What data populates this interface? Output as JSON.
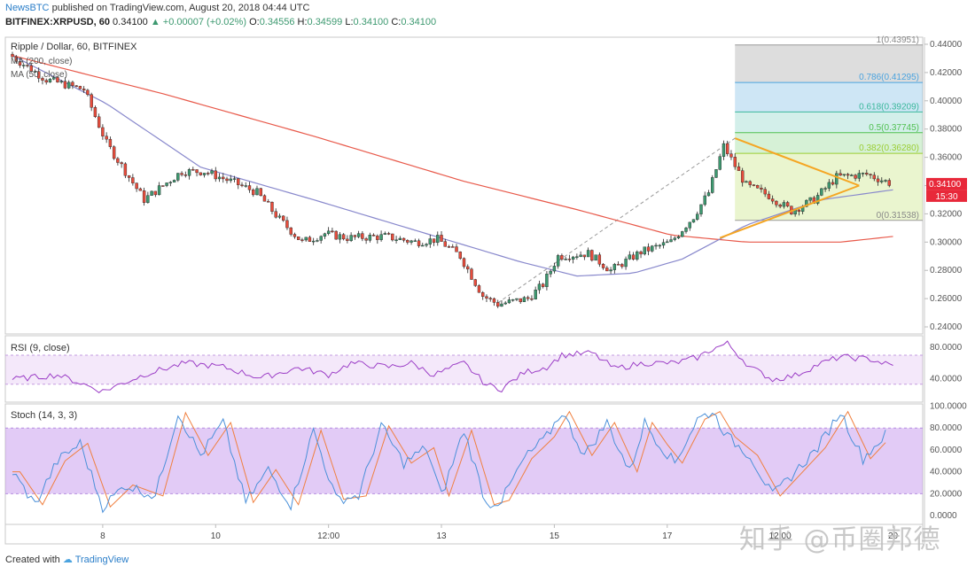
{
  "header": {
    "publisher": "NewsBTC",
    "published_text": "published on TradingView.com, August 20, 2018 04:44 UTC",
    "symbol": "BITFINEX:XRPUSD, 60",
    "last": "0.34100",
    "change": "▲ +0.00007 (+0.02%)",
    "o_label": "O:",
    "o": "0.34556",
    "h_label": "H:",
    "h": "0.34599",
    "l_label": "L:",
    "l": "0.34100",
    "c_label": "C:",
    "c": "0.34100"
  },
  "footer": {
    "created_with": "Created with",
    "brand": "TradingView"
  },
  "watermark": "知乎 @币圈邦德",
  "colors": {
    "up": "#3d9970",
    "down": "#e74c3c",
    "ma200": "#e8594a",
    "ma50": "#8888cc",
    "triangle": "#f5a623",
    "rsi": "#9b3dc6",
    "stoch_k": "#4a90d9",
    "stoch_d": "#f08040"
  },
  "chart_data": [
    {
      "type": "candlestick",
      "title": "Ripple / Dollar, 60, BITFINEX",
      "indicators": [
        "MA (200, close)",
        "MA (50, close)"
      ],
      "x_ticks": [
        "8",
        "10",
        "12:00",
        "13",
        "15",
        "17",
        "12:00",
        "20"
      ],
      "x_tick_bars": [
        24,
        54,
        84,
        114,
        144,
        174,
        204,
        234
      ],
      "n_bars": 240,
      "ylim": [
        0.235,
        0.445
      ],
      "y_ticks": [
        "0.44000",
        "0.42000",
        "0.40000",
        "0.38000",
        "0.36000",
        "0.34000",
        "0.32000",
        "0.30000",
        "0.28000",
        "0.26000",
        "0.24000"
      ],
      "last_price_label": "0.34100",
      "countdown_label": "15:30",
      "price_path": [
        [
          0,
          0.433
        ],
        [
          10,
          0.415
        ],
        [
          20,
          0.408
        ],
        [
          26,
          0.37
        ],
        [
          36,
          0.33
        ],
        [
          46,
          0.35
        ],
        [
          52,
          0.35
        ],
        [
          60,
          0.342
        ],
        [
          66,
          0.335
        ],
        [
          72,
          0.316
        ],
        [
          78,
          0.3
        ],
        [
          84,
          0.306
        ],
        [
          90,
          0.303
        ],
        [
          100,
          0.304
        ],
        [
          108,
          0.3
        ],
        [
          114,
          0.302
        ],
        [
          120,
          0.29
        ],
        [
          126,
          0.262
        ],
        [
          130,
          0.256
        ],
        [
          138,
          0.26
        ],
        [
          142,
          0.27
        ],
        [
          146,
          0.29
        ],
        [
          154,
          0.292
        ],
        [
          160,
          0.28
        ],
        [
          168,
          0.293
        ],
        [
          176,
          0.3
        ],
        [
          182,
          0.318
        ],
        [
          186,
          0.335
        ],
        [
          190,
          0.368
        ],
        [
          196,
          0.34
        ],
        [
          202,
          0.333
        ],
        [
          208,
          0.322
        ],
        [
          214,
          0.33
        ],
        [
          220,
          0.346
        ],
        [
          228,
          0.348
        ],
        [
          234,
          0.342
        ]
      ],
      "ma200": [
        [
          0,
          0.432
        ],
        [
          40,
          0.405
        ],
        [
          80,
          0.375
        ],
        [
          120,
          0.343
        ],
        [
          150,
          0.323
        ],
        [
          175,
          0.305
        ],
        [
          195,
          0.3
        ],
        [
          220,
          0.3
        ],
        [
          234,
          0.304
        ]
      ],
      "ma50": [
        [
          0,
          0.432
        ],
        [
          25,
          0.398
        ],
        [
          50,
          0.353
        ],
        [
          80,
          0.33
        ],
        [
          110,
          0.306
        ],
        [
          135,
          0.286
        ],
        [
          150,
          0.276
        ],
        [
          165,
          0.278
        ],
        [
          178,
          0.288
        ],
        [
          195,
          0.312
        ],
        [
          215,
          0.33
        ],
        [
          234,
          0.337
        ]
      ],
      "fibonacci": {
        "levels": [
          {
            "ratio": 1,
            "price": 0.43951,
            "label": "1(0.43951)",
            "fill": "rgba(150,150,150,0.32)",
            "line": "#999999"
          },
          {
            "ratio": 0.786,
            "price": 0.41295,
            "label": "0.786(0.41295)",
            "fill": "rgba(78,165,220,0.28)",
            "line": "#4aa3df"
          },
          {
            "ratio": 0.618,
            "price": 0.39209,
            "label": "0.618(0.39209)",
            "fill": "rgba(80,190,170,0.25)",
            "line": "#3ab79b"
          },
          {
            "ratio": 0.5,
            "price": 0.37745,
            "label": "0.5(0.37745)",
            "fill": "rgba(90,200,90,0.25)",
            "line": "#50c050"
          },
          {
            "ratio": 0.382,
            "price": 0.3628,
            "label": "0.382(0.36280)",
            "fill": "rgba(170,215,80,0.26)",
            "line": "#9acd32"
          },
          {
            "ratio": 0,
            "price": 0.31538,
            "label": "0(0.31538)",
            "fill": "none",
            "line": "#999999"
          }
        ],
        "from_bar": 192,
        "to_bar": 240
      },
      "triangle": {
        "upper": [
          [
            192,
            0.3735
          ],
          [
            225,
            0.34
          ]
        ],
        "lower": [
          [
            188,
            0.303
          ],
          [
            225,
            0.34
          ]
        ]
      },
      "trend_dashed": [
        [
          129,
          0.257
        ],
        [
          192,
          0.3735
        ]
      ]
    },
    {
      "type": "line",
      "title": "RSI (9, close)",
      "ylim": [
        10,
        95
      ],
      "y_ticks": [
        "80.0000",
        "40.0000"
      ],
      "band": [
        33,
        70
      ],
      "path": [
        [
          0,
          39
        ],
        [
          12,
          45
        ],
        [
          24,
          24
        ],
        [
          36,
          47
        ],
        [
          46,
          60
        ],
        [
          56,
          55
        ],
        [
          66,
          41
        ],
        [
          76,
          54
        ],
        [
          84,
          45
        ],
        [
          90,
          60
        ],
        [
          100,
          55
        ],
        [
          106,
          60
        ],
        [
          112,
          45
        ],
        [
          120,
          60
        ],
        [
          126,
          32
        ],
        [
          130,
          27
        ],
        [
          136,
          48
        ],
        [
          142,
          55
        ],
        [
          146,
          70
        ],
        [
          154,
          73
        ],
        [
          160,
          53
        ],
        [
          168,
          60
        ],
        [
          176,
          60
        ],
        [
          182,
          67
        ],
        [
          186,
          78
        ],
        [
          190,
          85
        ],
        [
          196,
          55
        ],
        [
          202,
          39
        ],
        [
          208,
          44
        ],
        [
          214,
          58
        ],
        [
          220,
          68
        ],
        [
          228,
          65
        ],
        [
          234,
          56
        ]
      ]
    },
    {
      "type": "line",
      "title": "Stoch (14, 3, 3)",
      "ylim": [
        -8,
        102
      ],
      "y_ticks": [
        "100.0000",
        "80.0000",
        "60.0000",
        "40.0000",
        "20.0000",
        "0.0000"
      ],
      "band": [
        20,
        80
      ],
      "k_path": [
        [
          0,
          40
        ],
        [
          6,
          10
        ],
        [
          12,
          50
        ],
        [
          18,
          66
        ],
        [
          24,
          8
        ],
        [
          30,
          28
        ],
        [
          38,
          18
        ],
        [
          44,
          94
        ],
        [
          50,
          55
        ],
        [
          56,
          85
        ],
        [
          62,
          12
        ],
        [
          68,
          42
        ],
        [
          74,
          10
        ],
        [
          80,
          78
        ],
        [
          86,
          15
        ],
        [
          92,
          18
        ],
        [
          98,
          82
        ],
        [
          104,
          48
        ],
        [
          110,
          62
        ],
        [
          114,
          18
        ],
        [
          120,
          78
        ],
        [
          126,
          10
        ],
        [
          130,
          14
        ],
        [
          136,
          52
        ],
        [
          142,
          72
        ],
        [
          146,
          95
        ],
        [
          152,
          55
        ],
        [
          158,
          85
        ],
        [
          164,
          40
        ],
        [
          168,
          85
        ],
        [
          172,
          65
        ],
        [
          176,
          48
        ],
        [
          182,
          88
        ],
        [
          186,
          95
        ],
        [
          190,
          72
        ],
        [
          196,
          55
        ],
        [
          202,
          18
        ],
        [
          208,
          40
        ],
        [
          214,
          62
        ],
        [
          220,
          95
        ],
        [
          226,
          52
        ],
        [
          232,
          74
        ]
      ]
    }
  ]
}
